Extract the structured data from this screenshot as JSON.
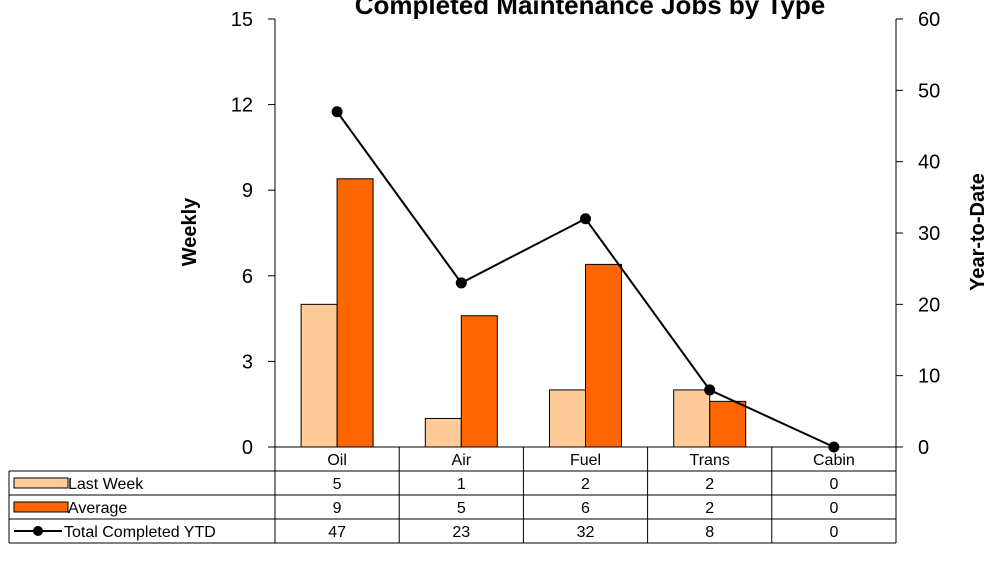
{
  "chart_data": {
    "type": "bar",
    "title": "Completed Maintenance Jobs by Type",
    "categories": [
      "Oil",
      "Air",
      "Fuel",
      "Trans",
      "Cabin"
    ],
    "series": [
      {
        "name": "Last Week",
        "kind": "bar",
        "axis": "left",
        "color": "#FFCC99",
        "values": [
          5,
          1,
          2,
          2,
          0
        ]
      },
      {
        "name": "Average",
        "kind": "bar",
        "axis": "left",
        "color": "#FF6600",
        "values": [
          9.4,
          4.6,
          6.4,
          1.6,
          0
        ]
      },
      {
        "name": "Total Completed YTD",
        "kind": "line",
        "axis": "right",
        "color": "#000000",
        "values": [
          47,
          23,
          32,
          8,
          0
        ]
      }
    ],
    "table_values": [
      [
        "5",
        "1",
        "2",
        "2",
        "0"
      ],
      [
        "9",
        "5",
        "6",
        "2",
        "0"
      ],
      [
        "47",
        "23",
        "32",
        "8",
        "0"
      ]
    ],
    "ylabel_left": "Weekly",
    "ylabel_right": "Year-to-Date",
    "ylim_left": [
      0,
      15
    ],
    "yticks_left": [
      "0",
      "3",
      "6",
      "9",
      "12",
      "15"
    ],
    "ylim_right": [
      0,
      60
    ],
    "yticks_right": [
      "0",
      "10",
      "20",
      "30",
      "40",
      "50",
      "60"
    ],
    "grid": false,
    "legend": "data-table"
  }
}
